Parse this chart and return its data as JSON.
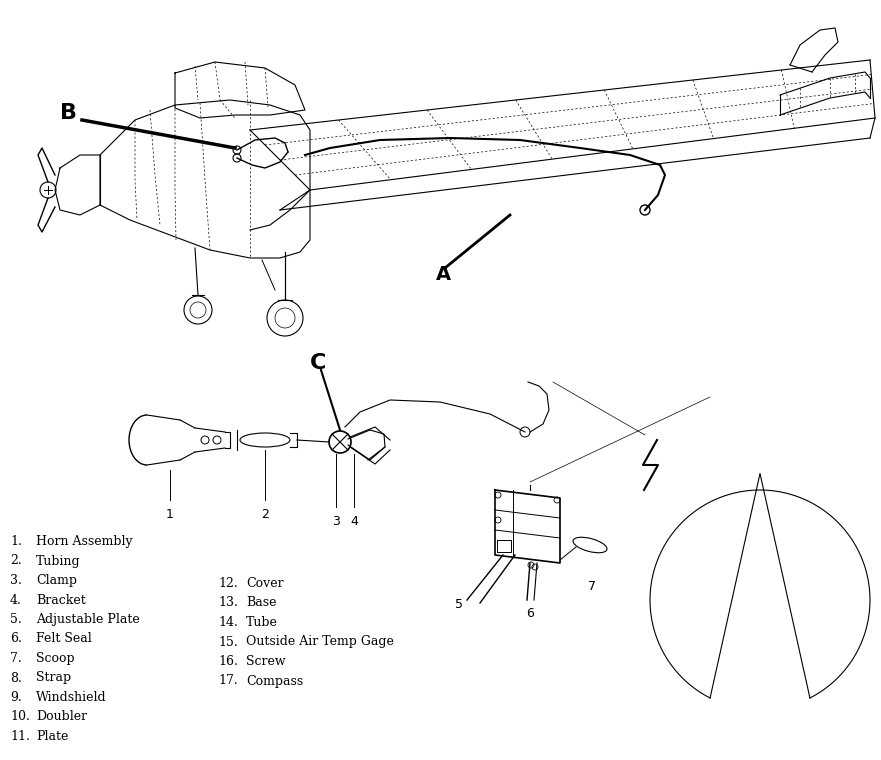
{
  "background_color": "#ffffff",
  "line_color": "#000000",
  "legend_left": [
    [
      "1.",
      "Horn Assembly"
    ],
    [
      "2.",
      "Tubing"
    ],
    [
      "3.",
      "Clamp"
    ],
    [
      "4.",
      "Bracket"
    ],
    [
      "5.",
      "Adjustable Plate"
    ],
    [
      "6.",
      "Felt Seal"
    ],
    [
      "7.",
      "Scoop"
    ],
    [
      "8.",
      "Strap"
    ],
    [
      "9.",
      "Windshield"
    ],
    [
      "10.",
      "Doubler"
    ],
    [
      "11.",
      "Plate"
    ]
  ],
  "legend_right": [
    [
      "12.",
      "Cover"
    ],
    [
      "13.",
      "Base"
    ],
    [
      "14.",
      "Tube"
    ],
    [
      "15.",
      "Outside Air Temp Gage"
    ],
    [
      "16.",
      "Screw"
    ],
    [
      "17.",
      "Compass"
    ]
  ]
}
